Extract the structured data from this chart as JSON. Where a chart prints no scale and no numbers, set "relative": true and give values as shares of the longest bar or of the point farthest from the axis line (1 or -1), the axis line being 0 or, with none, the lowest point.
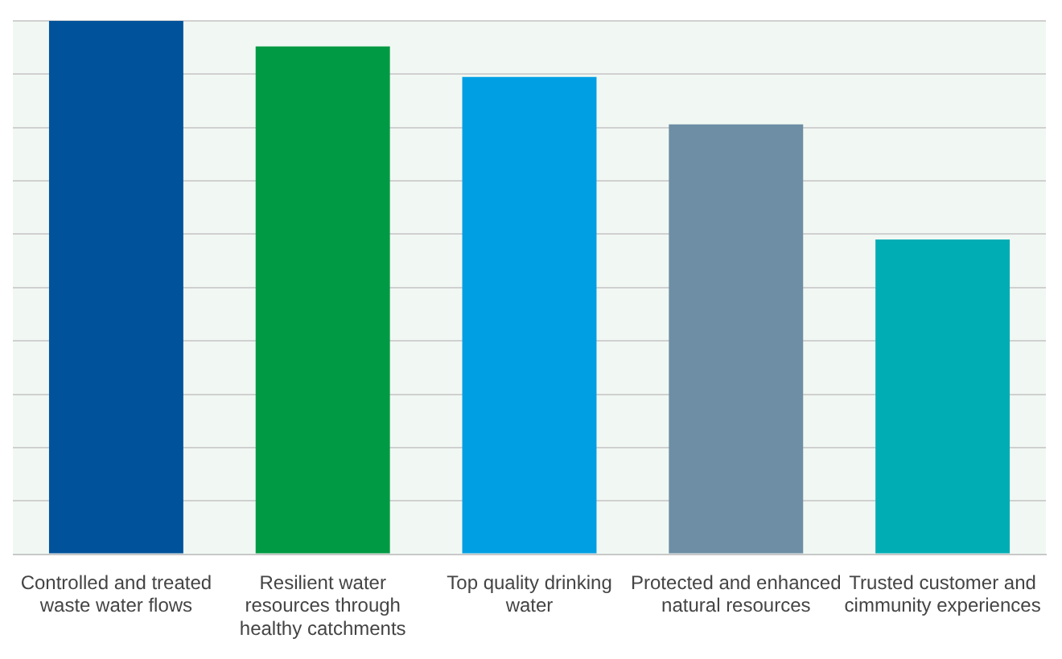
{
  "chart_data": {
    "type": "bar",
    "relative": true,
    "grid": "y",
    "categories": [
      "Controlled and treated waste water flows",
      "Resilient water resources through healthy catchments",
      "Top quality drinking water",
      "Protected and enhanced natural resources",
      "Trusted customer and cimmunity experiences"
    ],
    "values": [
      1,
      0.952,
      0.895,
      0.806,
      0.59
    ],
    "colors": [
      "#00529b",
      "#009a44",
      "#009fe3",
      "#6d8ea4",
      "#00adb5"
    ]
  }
}
